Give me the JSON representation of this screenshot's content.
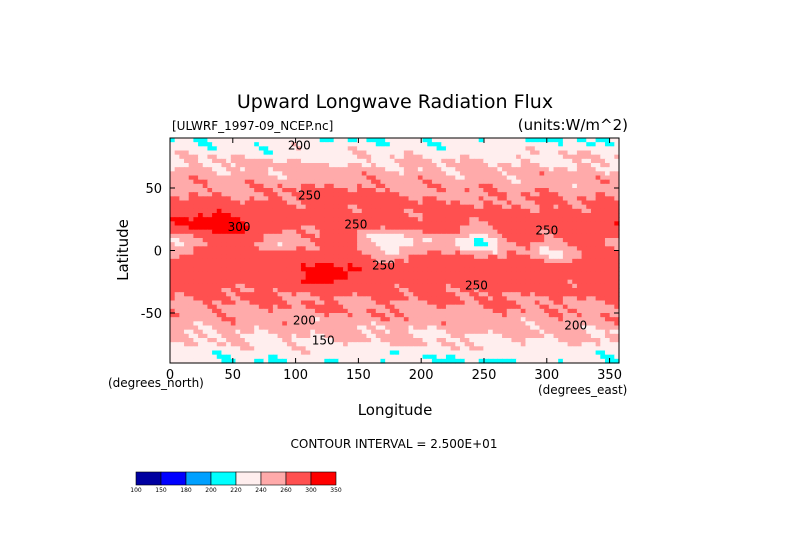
{
  "chart_data": {
    "type": "heatmap",
    "title": "Upward Longwave Radiation Flux",
    "file_label": "[ULWRF_1997-09_NCEP.nc]",
    "units_label": "(units:W/m^2)",
    "xlabel": "Longitude",
    "ylabel": "Latitude",
    "x_unit_note": "(degrees_east)",
    "y_unit_note": "(degrees_north)",
    "xlim": [
      0,
      357.5
    ],
    "ylim": [
      -90,
      90
    ],
    "xticks": [
      0,
      50,
      100,
      150,
      200,
      250,
      300,
      350
    ],
    "yticks": [
      50,
      0,
      -50
    ],
    "contour_interval_text": "CONTOUR INTERVAL = 2.500E+01",
    "colorbar": {
      "levels": [
        "100",
        "150",
        "180",
        "200",
        "220",
        "240",
        "260",
        "300",
        "350"
      ],
      "colors": [
        "#0000a0",
        "#0000ff",
        "#00a0ff",
        "#00ffff",
        "#ffeeee",
        "#ffaaaa",
        "#ff5050",
        "#ff0000"
      ]
    },
    "contour_labels": [
      {
        "text": "200",
        "lon": 103,
        "lat": 84
      },
      {
        "text": "250",
        "lon": 111,
        "lat": 44
      },
      {
        "text": "300",
        "lon": 55,
        "lat": 19
      },
      {
        "text": "250",
        "lon": 148,
        "lat": 21
      },
      {
        "text": "250",
        "lon": 300,
        "lat": 16
      },
      {
        "text": "250",
        "lon": 170,
        "lat": -12
      },
      {
        "text": "250",
        "lon": 244,
        "lat": -28
      },
      {
        "text": "200",
        "lon": 107,
        "lat": -56
      },
      {
        "text": "200",
        "lon": 323,
        "lat": -60
      },
      {
        "text": "150",
        "lon": 122,
        "lat": -72
      }
    ]
  }
}
